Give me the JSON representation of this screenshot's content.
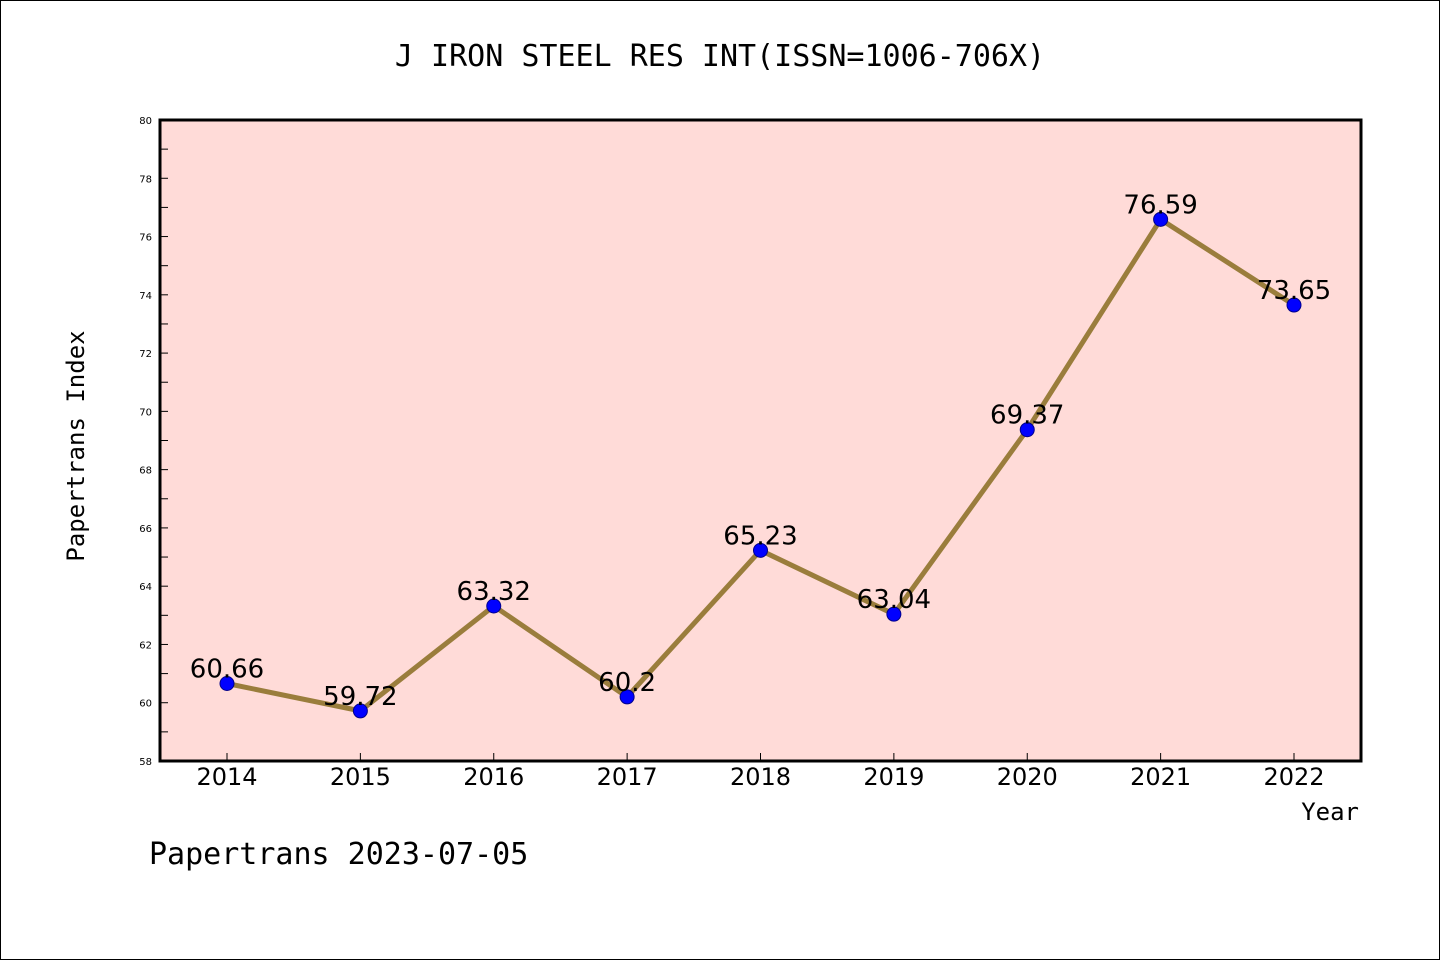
{
  "chart_data": {
    "type": "line",
    "title": "J IRON STEEL RES INT(ISSN=1006-706X)",
    "xlabel": "Year",
    "ylabel": "Papertrans Index",
    "x": [
      "2014",
      "2015",
      "2016",
      "2017",
      "2018",
      "2019",
      "2020",
      "2021",
      "2022"
    ],
    "series": [
      {
        "values": [
          60.66,
          59.72,
          63.32,
          60.2,
          65.23,
          63.04,
          69.37,
          76.59,
          73.65
        ],
        "labels": [
          "60.66",
          "59.72",
          "63.32",
          "60.2",
          "65.23",
          "63.04",
          "69.37",
          "76.59",
          "73.65"
        ]
      }
    ],
    "ylim": [
      58,
      80
    ],
    "y_ticks": [
      "58",
      "60",
      "62",
      "64",
      "66",
      "68",
      "70",
      "72",
      "74",
      "76",
      "78",
      "80"
    ],
    "grid": false,
    "legend": "none",
    "colors": {
      "plot_background": "#FFDBD8",
      "line": "#9A7D3C",
      "marker": "#0000FF"
    }
  },
  "footer": {
    "text": "Papertrans 2023-07-05"
  }
}
